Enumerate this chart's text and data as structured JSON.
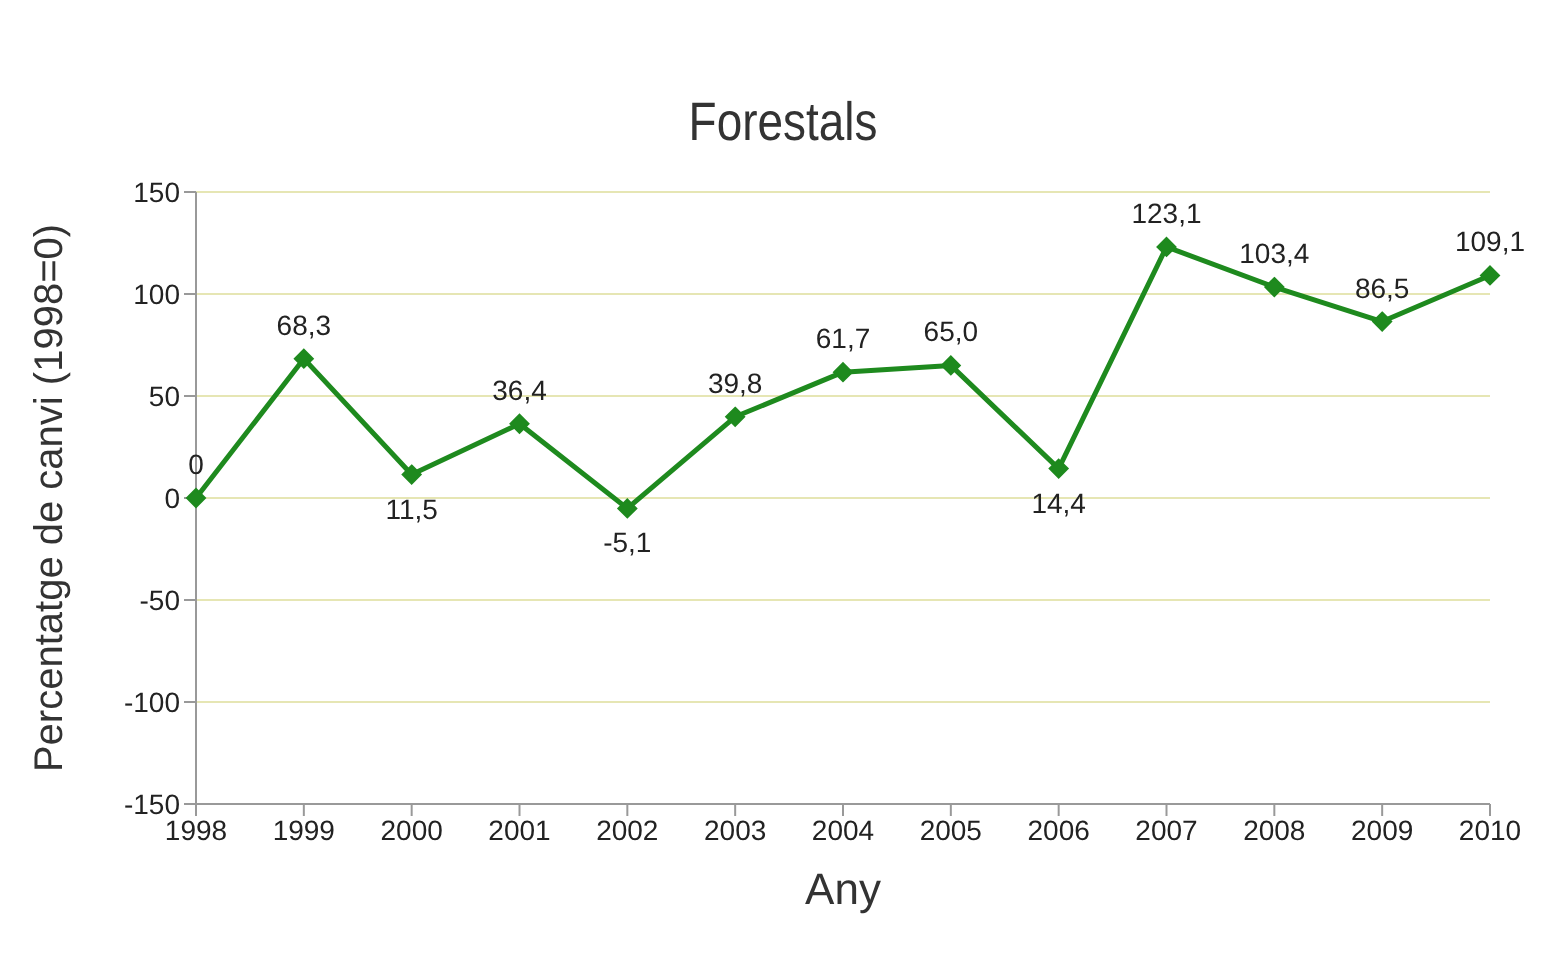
{
  "chart_data": {
    "type": "line",
    "title": "Forestals",
    "xlabel": "Any",
    "ylabel": "Percentatge de canvi (1998=0)",
    "categories": [
      "1998",
      "1999",
      "2000",
      "2001",
      "2002",
      "2003",
      "2004",
      "2005",
      "2006",
      "2007",
      "2008",
      "2009",
      "2010"
    ],
    "series": [
      {
        "color": "#1e8a1e",
        "values": [
          0,
          68.3,
          11.5,
          36.4,
          -5.1,
          39.8,
          61.7,
          65.0,
          14.4,
          123.1,
          103.4,
          86.5,
          109.1
        ]
      }
    ],
    "value_labels": [
      "0",
      "68,3",
      "11,5",
      "36,4",
      "-5,1",
      "39,8",
      "61,7",
      "65,0",
      "14,4",
      "123,1",
      "103,4",
      "86,5",
      "109,1"
    ],
    "ylim": [
      -150,
      150
    ],
    "yticks": [
      -150,
      -100,
      -50,
      0,
      50,
      100,
      150
    ],
    "grid": "y",
    "legend": false,
    "marker": "diamond",
    "line_style": "solid"
  }
}
